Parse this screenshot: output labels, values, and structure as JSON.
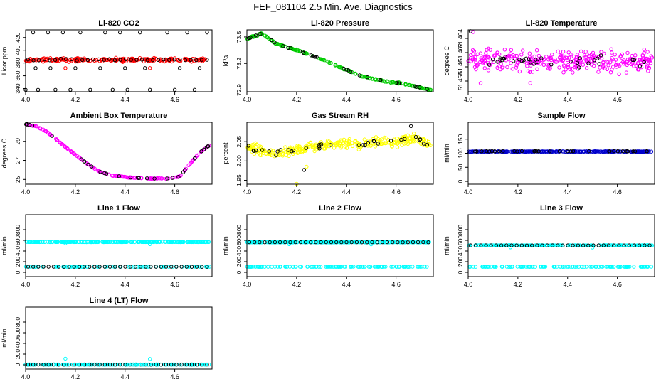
{
  "page_title": "FEF_081104  2.5 Min. Ave. Diagnostics",
  "chart_data": [
    {
      "type": "scatter",
      "title": "Li-820 CO2",
      "ylabel": "Licor ppm",
      "xlim": [
        4.0,
        4.75
      ],
      "ylim": [
        335,
        432
      ],
      "xticks": [
        4.0,
        4.2,
        4.4,
        4.6
      ],
      "yticks": [
        340,
        360,
        380,
        400,
        420
      ],
      "yticklabels": [
        "340",
        "360",
        "380",
        "400",
        "420"
      ],
      "series": [
        {
          "color": "#ff0000",
          "pattern": "band",
          "center": 385,
          "spread": 4,
          "count": 220,
          "from": 4.0,
          "to": 4.73,
          "extra": [
            [
              4.16,
              372
            ],
            [
              4.5,
              372
            ]
          ]
        },
        {
          "color": "#000000",
          "pattern": "dots",
          "center": 385,
          "spread": 2,
          "count": 34,
          "from": 4.01,
          "to": 4.73,
          "extra": [
            [
              4.0,
              338
            ],
            [
              4.03,
              428
            ],
            [
              4.05,
              338
            ],
            [
              4.09,
              428
            ],
            [
              4.12,
              338
            ],
            [
              4.15,
              428
            ],
            [
              4.18,
              338
            ],
            [
              4.22,
              428
            ],
            [
              4.26,
              338
            ],
            [
              4.32,
              428
            ],
            [
              4.35,
              338
            ],
            [
              4.38,
              428
            ],
            [
              4.41,
              338
            ],
            [
              4.46,
              428
            ],
            [
              4.5,
              338
            ],
            [
              4.57,
              428
            ],
            [
              4.6,
              338
            ],
            [
              4.65,
              428
            ],
            [
              4.68,
              338
            ],
            [
              4.73,
              428
            ],
            [
              4.04,
              372
            ],
            [
              4.1,
              372
            ],
            [
              4.2,
              372
            ],
            [
              4.3,
              372
            ],
            [
              4.4,
              372
            ],
            [
              4.48,
              372
            ],
            [
              4.62,
              372
            ],
            [
              4.7,
              372
            ]
          ]
        }
      ]
    },
    {
      "type": "scatter",
      "title": "Li-820 Pressure",
      "ylabel": "kPa",
      "xlim": [
        4.0,
        4.75
      ],
      "ylim": [
        72.88,
        73.58
      ],
      "xticks": [
        4.0,
        4.2,
        4.4,
        4.6
      ],
      "yticks": [
        72.9,
        73.2,
        73.5
      ],
      "yticklabels": [
        "72.9",
        "73.2",
        "73.5"
      ],
      "series": [
        {
          "color": "#00cc00",
          "pattern": "curve",
          "curve": [
            [
              4.0,
              73.48
            ],
            [
              4.06,
              73.54
            ],
            [
              4.12,
              73.42
            ],
            [
              4.2,
              73.35
            ],
            [
              4.3,
              73.25
            ],
            [
              4.38,
              73.15
            ],
            [
              4.46,
              73.06
            ],
            [
              4.55,
              73.0
            ],
            [
              4.63,
              72.97
            ],
            [
              4.74,
              72.9
            ]
          ],
          "spread": 0.012,
          "count": 180
        },
        {
          "color": "#000000",
          "pattern": "curve",
          "curve": [
            [
              4.0,
              73.48
            ],
            [
              4.06,
              73.54
            ],
            [
              4.12,
              73.42
            ],
            [
              4.2,
              73.35
            ],
            [
              4.3,
              73.25
            ],
            [
              4.38,
              73.15
            ],
            [
              4.46,
              73.06
            ],
            [
              4.55,
              73.0
            ],
            [
              4.63,
              72.97
            ],
            [
              4.74,
              72.9
            ]
          ],
          "spread": 0.008,
          "count": 32
        }
      ]
    },
    {
      "type": "scatter",
      "title": "Li-820 Temperature",
      "ylabel": "degrees C",
      "xlim": [
        4.0,
        4.75
      ],
      "ylim": [
        51.4565,
        51.4652
      ],
      "xticks": [
        4.0,
        4.2,
        4.4,
        4.6
      ],
      "yticks": [
        51.458,
        51.46,
        51.462,
        51.464
      ],
      "yticklabels": [
        "51.458",
        "51.46",
        "51.462",
        "51.464"
      ],
      "series": [
        {
          "color": "#ff00ff",
          "pattern": "band",
          "center": 51.4608,
          "spread": 0.0022,
          "count": 320,
          "from": 4.0,
          "to": 4.74,
          "extra": [
            [
              4.02,
              51.4649
            ],
            [
              4.05,
              51.4577
            ],
            [
              4.25,
              51.4577
            ]
          ]
        },
        {
          "color": "#000000",
          "pattern": "band",
          "center": 51.4608,
          "spread": 0.0012,
          "count": 34,
          "from": 4.01,
          "to": 4.73,
          "extra": [
            [
              4.01,
              51.465
            ]
          ]
        }
      ]
    },
    {
      "type": "scatter",
      "title": "Ambient Box Temperature",
      "ylabel": "degrees C",
      "xlim": [
        4.0,
        4.75
      ],
      "ylim": [
        24.5,
        31.0
      ],
      "xticks": [
        4.0,
        4.2,
        4.4,
        4.6
      ],
      "yticks": [
        25,
        27,
        29
      ],
      "yticklabels": [
        "25",
        "27",
        "29"
      ],
      "series": [
        {
          "color": "#ff00ff",
          "pattern": "curve",
          "curve": [
            [
              4.0,
              30.8
            ],
            [
              4.04,
              30.6
            ],
            [
              4.08,
              30.1
            ],
            [
              4.12,
              29.3
            ],
            [
              4.16,
              28.4
            ],
            [
              4.2,
              27.6
            ],
            [
              4.25,
              26.6
            ],
            [
              4.3,
              25.8
            ],
            [
              4.35,
              25.4
            ],
            [
              4.42,
              25.2
            ],
            [
              4.5,
              25.1
            ],
            [
              4.58,
              25.1
            ],
            [
              4.62,
              25.3
            ],
            [
              4.66,
              26.6
            ],
            [
              4.7,
              27.8
            ],
            [
              4.74,
              28.6
            ]
          ],
          "spread": 0.04,
          "count": 160
        },
        {
          "color": "#000000",
          "pattern": "curve",
          "curve": [
            [
              4.0,
              30.8
            ],
            [
              4.04,
              30.6
            ],
            [
              4.08,
              30.1
            ],
            [
              4.12,
              29.3
            ],
            [
              4.16,
              28.4
            ],
            [
              4.2,
              27.6
            ],
            [
              4.25,
              26.6
            ],
            [
              4.3,
              25.8
            ],
            [
              4.35,
              25.4
            ],
            [
              4.42,
              25.2
            ],
            [
              4.5,
              25.1
            ],
            [
              4.58,
              25.1
            ],
            [
              4.62,
              25.3
            ],
            [
              4.66,
              26.6
            ],
            [
              4.7,
              27.8
            ],
            [
              4.74,
              28.6
            ]
          ],
          "spread": 0.02,
          "count": 32
        }
      ]
    },
    {
      "type": "scatter",
      "title": "Gas Stream RH",
      "ylabel": "percent",
      "xlim": [
        4.0,
        4.75
      ],
      "ylim": [
        1.94,
        2.1
      ],
      "xticks": [
        4.0,
        4.2,
        4.4,
        4.6
      ],
      "yticks": [
        1.95,
        2.0,
        2.05
      ],
      "yticklabels": [
        "1.95",
        "2.00",
        "2.05"
      ],
      "series": [
        {
          "color": "#ffff00",
          "pattern": "curve",
          "curve": [
            [
              4.0,
              2.035
            ],
            [
              4.1,
              2.02
            ],
            [
              4.2,
              2.03
            ],
            [
              4.3,
              2.04
            ],
            [
              4.4,
              2.045
            ],
            [
              4.5,
              2.045
            ],
            [
              4.6,
              2.05
            ],
            [
              4.68,
              2.06
            ],
            [
              4.74,
              2.04
            ]
          ],
          "spread": 0.018,
          "count": 300,
          "extra": [
            [
              4.2,
              1.941
            ],
            [
              4.24,
              1.985
            ]
          ]
        },
        {
          "color": "#000000",
          "pattern": "curve",
          "curve": [
            [
              4.0,
              2.035
            ],
            [
              4.1,
              2.02
            ],
            [
              4.2,
              2.03
            ],
            [
              4.3,
              2.04
            ],
            [
              4.4,
              2.045
            ],
            [
              4.5,
              2.045
            ],
            [
              4.6,
              2.05
            ],
            [
              4.68,
              2.06
            ],
            [
              4.74,
              2.04
            ]
          ],
          "spread": 0.01,
          "count": 34,
          "extra": [
            [
              4.23,
              1.977
            ],
            [
              4.66,
              2.09
            ]
          ]
        }
      ]
    },
    {
      "type": "scatter",
      "title": "Sample Flow",
      "ylabel": "ml/min",
      "xlim": [
        4.0,
        4.75
      ],
      "ylim": [
        -10,
        210
      ],
      "xticks": [
        4.0,
        4.2,
        4.4,
        4.6
      ],
      "yticks": [
        0,
        50,
        100,
        150
      ],
      "yticklabels": [
        "0",
        "50",
        "100",
        "150"
      ],
      "series": [
        {
          "color": "#0000cc",
          "pattern": "band",
          "center": 106,
          "spread": 1.5,
          "count": 260,
          "from": 4.0,
          "to": 4.74
        },
        {
          "color": "#000000",
          "pattern": "band",
          "center": 107,
          "spread": 1.0,
          "count": 34,
          "from": 4.01,
          "to": 4.73
        }
      ]
    },
    {
      "type": "scatter",
      "title": "Line 1 Flow",
      "ylabel": "ml/min",
      "xlim": [
        4.0,
        4.75
      ],
      "ylim": [
        -80,
        1080
      ],
      "xticks": [
        4.0,
        4.2,
        4.4,
        4.6
      ],
      "yticks": [
        0,
        200,
        400,
        600,
        800
      ],
      "yticklabels": [
        "0",
        "200",
        "400",
        "600",
        "800"
      ],
      "series": [
        {
          "color": "#00ffff",
          "pattern": "band",
          "center": 570,
          "spread": 4,
          "count": 240,
          "from": 4.0,
          "to": 4.74,
          "extra": [
            [
              4.16,
              545
            ],
            [
              4.5,
              530
            ]
          ]
        },
        {
          "color": "#00ffff",
          "pattern": "band",
          "center": 105,
          "spread": 2,
          "count": 80,
          "from": 4.0,
          "to": 4.74
        },
        {
          "color": "#000000",
          "pattern": "dots",
          "center": 105,
          "spread": 1,
          "count": 36,
          "from": 4.01,
          "to": 4.73
        }
      ]
    },
    {
      "type": "scatter",
      "title": "Line 2 Flow",
      "ylabel": "ml/min",
      "xlim": [
        4.0,
        4.75
      ],
      "ylim": [
        -80,
        1080
      ],
      "xticks": [
        4.0,
        4.2,
        4.4,
        4.6
      ],
      "yticks": [
        0,
        200,
        400,
        600,
        800
      ],
      "yticklabels": [
        "0",
        "200",
        "400",
        "600",
        "800"
      ],
      "series": [
        {
          "color": "#00ffff",
          "pattern": "band",
          "center": 565,
          "spread": 4,
          "count": 240,
          "from": 4.0,
          "to": 4.74,
          "extra": [
            [
              4.17,
              530
            ],
            [
              4.5,
              525
            ]
          ]
        },
        {
          "color": "#00ffff",
          "pattern": "band",
          "center": 105,
          "spread": 2,
          "count": 120,
          "from": 4.0,
          "to": 4.74
        },
        {
          "color": "#000000",
          "pattern": "dots",
          "center": 565,
          "spread": 1,
          "count": 36,
          "from": 4.01,
          "to": 4.73
        }
      ]
    },
    {
      "type": "scatter",
      "title": "Line 3 Flow",
      "ylabel": "ml/min",
      "xlim": [
        4.0,
        4.75
      ],
      "ylim": [
        -80,
        1080
      ],
      "xticks": [
        4.0,
        4.2,
        4.4,
        4.6
      ],
      "yticks": [
        0,
        200,
        400,
        600,
        800
      ],
      "yticklabels": [
        "0",
        "200",
        "400",
        "600",
        "800"
      ],
      "series": [
        {
          "color": "#00ffff",
          "pattern": "band",
          "center": 505,
          "spread": 4,
          "count": 240,
          "from": 4.0,
          "to": 4.74,
          "extra": [
            [
              4.17,
              470
            ],
            [
              4.5,
              465
            ]
          ]
        },
        {
          "color": "#00ffff",
          "pattern": "band",
          "center": 105,
          "spread": 2,
          "count": 120,
          "from": 4.0,
          "to": 4.74
        },
        {
          "color": "#000000",
          "pattern": "dots",
          "center": 505,
          "spread": 1,
          "count": 36,
          "from": 4.01,
          "to": 4.73
        }
      ]
    },
    {
      "type": "scatter",
      "title": "Line 4 (LT) Flow",
      "ylabel": "ml/min",
      "xlim": [
        4.0,
        4.75
      ],
      "ylim": [
        -80,
        1080
      ],
      "xticks": [
        4.0,
        4.2,
        4.4,
        4.6
      ],
      "yticks": [
        0,
        200,
        400,
        600,
        800
      ],
      "yticklabels": [
        "0",
        "200",
        "400",
        "600",
        "800"
      ],
      "series": [
        {
          "color": "#00ffff",
          "pattern": "band",
          "center": 5,
          "spread": 2,
          "count": 200,
          "from": 4.0,
          "to": 4.74,
          "extra": [
            [
              4.16,
              115
            ],
            [
              4.5,
              110
            ]
          ]
        },
        {
          "color": "#000000",
          "pattern": "dots",
          "center": 5,
          "spread": 1,
          "count": 36,
          "from": 4.01,
          "to": 4.73
        }
      ]
    }
  ]
}
